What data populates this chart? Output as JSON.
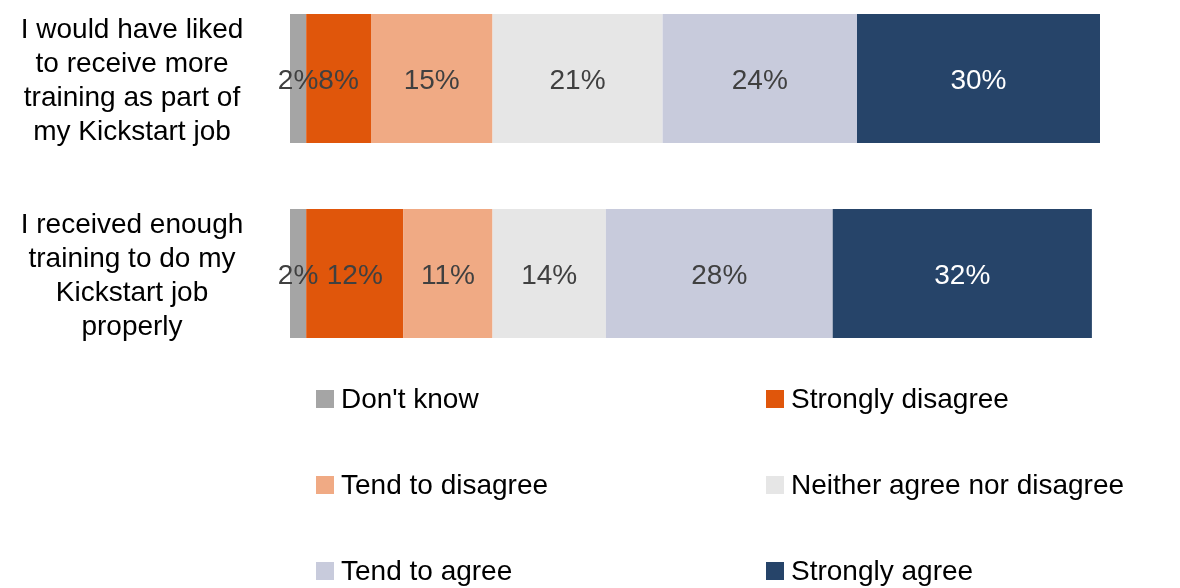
{
  "chart_data": {
    "type": "bar",
    "orientation": "horizontal",
    "stacked": true,
    "legend": "bottom",
    "categories": [
      "I would have liked to receive more training as part of my Kickstart job",
      "I received enough training to do my Kickstart job properly"
    ],
    "series": [
      {
        "name": "Don't know",
        "color": "#a5a5a5",
        "values": [
          2,
          2
        ],
        "value_labels": [
          "2%",
          "2%"
        ]
      },
      {
        "name": "Strongly disagree",
        "color": "#e0560b",
        "values": [
          8,
          12
        ],
        "value_labels": [
          "8%",
          "12%"
        ]
      },
      {
        "name": "Tend to disagree",
        "color": "#f0aa84",
        "values": [
          15,
          11
        ],
        "value_labels": [
          "15%",
          "11%"
        ]
      },
      {
        "name": "Neither agree nor disagree",
        "color": "#e6e6e6",
        "values": [
          21,
          14
        ],
        "value_labels": [
          "21%",
          "14%"
        ]
      },
      {
        "name": "Tend to agree",
        "color": "#c8cbdc",
        "values": [
          24,
          28
        ],
        "value_labels": [
          "24%",
          "28%"
        ]
      },
      {
        "name": "Strongly agree",
        "color": "#264469",
        "values": [
          30,
          32
        ],
        "value_labels": [
          "30%",
          "32%"
        ]
      }
    ]
  }
}
